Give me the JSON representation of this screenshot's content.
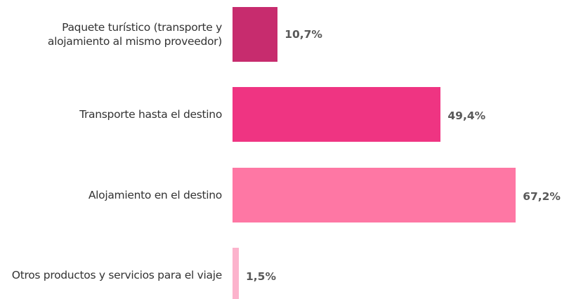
{
  "chart_data": {
    "type": "hbar",
    "categories": [
      "Paquete turístico (transporte y alojamiento al mismo proveedor)",
      "Transporte hasta el destino",
      "Alojamiento en el destino",
      "Otros productos y servicios para el viaje"
    ],
    "values": [
      10.7,
      49.4,
      67.2,
      1.5
    ],
    "value_labels": [
      "10,7%",
      "49,4%",
      "67,2%",
      "1,5%"
    ],
    "colors": [
      "#c72c6e",
      "#ef3482",
      "#fe77a4",
      "#fcb3cc"
    ]
  }
}
